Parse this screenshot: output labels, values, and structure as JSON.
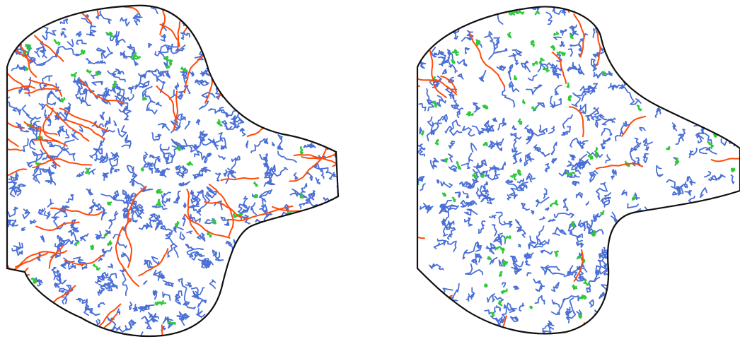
{
  "figure": {
    "description_free": true,
    "colors": {
      "outline": "#111111",
      "blue": "#4a6fd6",
      "orange": "#ff4a0a",
      "green": "#2fc93a",
      "background": "#ffffff"
    },
    "panels": [
      {
        "id": "left",
        "seed": 7,
        "blue_count": 430,
        "orange_count": 60,
        "green_count": 45
      },
      {
        "id": "right",
        "seed": 19,
        "blue_count": 360,
        "orange_count": 18,
        "green_count": 70
      }
    ]
  }
}
